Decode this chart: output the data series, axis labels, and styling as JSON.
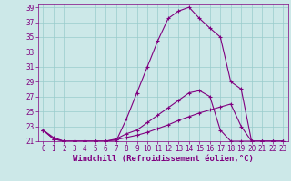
{
  "line1": {
    "x": [
      0,
      1,
      2,
      3,
      4,
      5,
      6,
      7,
      8,
      9,
      10,
      11,
      12,
      13,
      14,
      15,
      16,
      17,
      18,
      19,
      20,
      21,
      22,
      23
    ],
    "y": [
      22.5,
      21.5,
      21.0,
      21.0,
      21.0,
      21.0,
      21.0,
      21.0,
      24.0,
      27.5,
      31.0,
      34.5,
      37.5,
      38.5,
      39.0,
      37.5,
      36.2,
      35.0,
      29.0,
      28.0,
      21.0,
      21.0,
      21.0,
      21.0
    ]
  },
  "line2": {
    "x": [
      0,
      1,
      2,
      3,
      4,
      5,
      6,
      7,
      8,
      9,
      10,
      11,
      12,
      13,
      14,
      15,
      16,
      17,
      18,
      19,
      20,
      21,
      22,
      23
    ],
    "y": [
      22.5,
      21.3,
      21.0,
      21.0,
      21.0,
      21.0,
      21.0,
      21.3,
      22.0,
      22.5,
      23.5,
      24.5,
      25.5,
      26.5,
      27.5,
      27.8,
      27.0,
      22.5,
      21.0,
      21.0,
      21.0,
      21.0,
      21.0,
      21.0
    ]
  },
  "line3": {
    "x": [
      0,
      1,
      2,
      3,
      4,
      5,
      6,
      7,
      8,
      9,
      10,
      11,
      12,
      13,
      14,
      15,
      16,
      17,
      18,
      19,
      20,
      21,
      22,
      23
    ],
    "y": [
      22.5,
      21.3,
      21.0,
      21.0,
      21.0,
      21.0,
      21.0,
      21.2,
      21.5,
      21.8,
      22.2,
      22.7,
      23.2,
      23.8,
      24.3,
      24.8,
      25.2,
      25.6,
      26.0,
      23.0,
      21.0,
      21.0,
      21.0,
      21.0
    ]
  },
  "line_color": "#800080",
  "marker": "+",
  "marker_size": 3,
  "marker_lw": 0.8,
  "line_width": 0.8,
  "background_color": "#cce8e8",
  "grid_color": "#99cccc",
  "xlabel": "Windchill (Refroidissement éolien,°C)",
  "xlabel_color": "#800080",
  "xlabel_fontsize": 6.5,
  "tick_color": "#800080",
  "tick_fontsize": 5.5,
  "xlim": [
    -0.5,
    23.5
  ],
  "ylim": [
    21,
    39.5
  ],
  "yticks": [
    21,
    23,
    25,
    27,
    29,
    31,
    33,
    35,
    37,
    39
  ],
  "xticks": [
    0,
    1,
    2,
    3,
    4,
    5,
    6,
    7,
    8,
    9,
    10,
    11,
    12,
    13,
    14,
    15,
    16,
    17,
    18,
    19,
    20,
    21,
    22,
    23
  ]
}
